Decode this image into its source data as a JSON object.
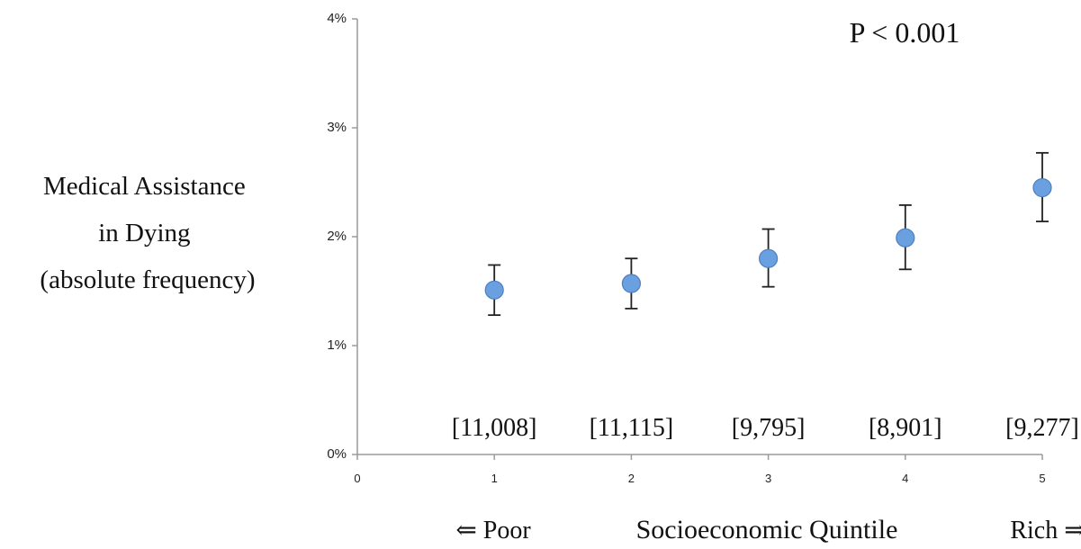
{
  "chart_data": {
    "type": "scatter",
    "annotation": "P < 0.001",
    "ylabel_lines": [
      "Medical Assistance",
      "in Dying",
      "(absolute frequency)"
    ],
    "xlabel": "Socioeconomic Quintile",
    "x_left_label": "⇐ Poor",
    "x_right_label": "Rich ⇒",
    "xlim": [
      0,
      5
    ],
    "ylim": [
      0,
      4
    ],
    "x_ticks": [
      "0",
      "1",
      "2",
      "3",
      "4",
      "5"
    ],
    "y_ticks": [
      "0%",
      "1%",
      "2%",
      "3%",
      "4%"
    ],
    "x": [
      1,
      2,
      3,
      4,
      5
    ],
    "y": [
      1.51,
      1.57,
      1.8,
      1.99,
      2.45
    ],
    "error_low": [
      1.28,
      1.34,
      1.54,
      1.7,
      2.14
    ],
    "error_high": [
      1.74,
      1.8,
      2.07,
      2.29,
      2.77
    ],
    "counts": [
      "[11,008]",
      "[11,115]",
      "[9,795]",
      "[8,901]",
      "[9,277]"
    ],
    "point_color": "#6a9fe0",
    "point_edge_color": "#4f7fc0",
    "axis_color": "#9a9a9a",
    "errorbar_color": "#222222"
  }
}
